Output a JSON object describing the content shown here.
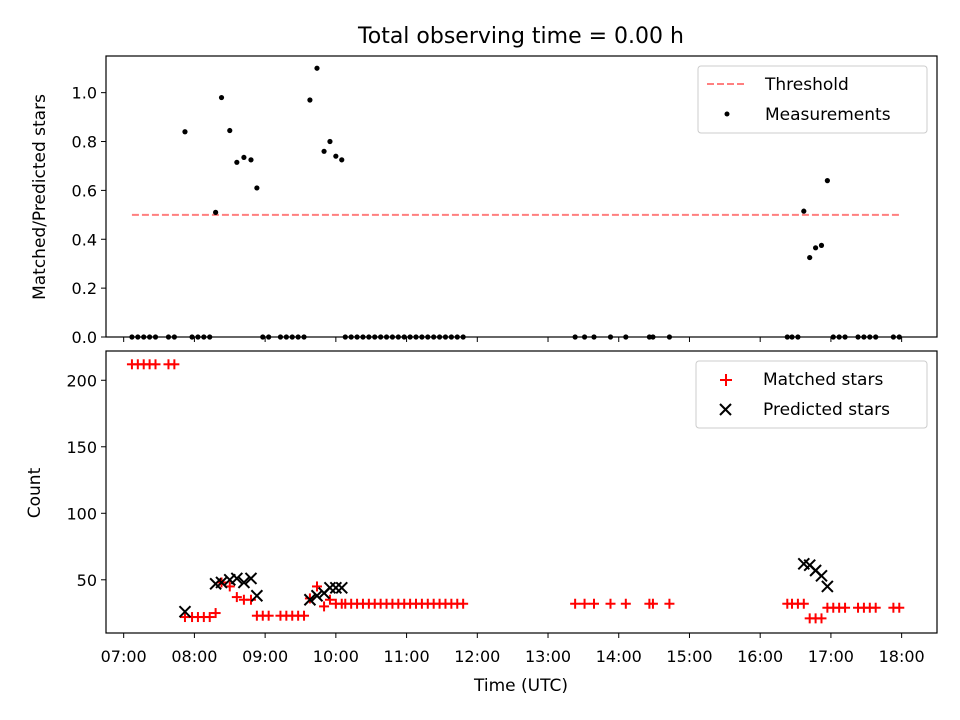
{
  "chart_data": [
    {
      "type": "scatter",
      "title": "Total observing time = 0.00 h",
      "ylabel": "Matched/Predicted stars",
      "xlabel": "",
      "xlim": [
        "06:45",
        "18:30"
      ],
      "ylim": [
        0,
        1.15
      ],
      "yticks": [
        "0.0",
        "0.2",
        "0.4",
        "0.6",
        "0.8",
        "1.0"
      ],
      "grid": false,
      "legend": "top-right",
      "threshold": {
        "name": "Threshold",
        "value": 0.5,
        "x_start": "07:07",
        "x_end": "17:58",
        "color": "#ff7f7f",
        "style": "dashed"
      },
      "series": [
        {
          "name": "Measurements",
          "color": "#000000",
          "marker": "dot",
          "points": [
            [
              "07:07",
              0
            ],
            [
              "07:12",
              0
            ],
            [
              "07:17",
              0
            ],
            [
              "07:22",
              0
            ],
            [
              "07:27",
              0
            ],
            [
              "07:38",
              0
            ],
            [
              "07:43",
              0
            ],
            [
              "07:52",
              0.84
            ],
            [
              "07:58",
              0
            ],
            [
              "08:03",
              0
            ],
            [
              "08:08",
              0
            ],
            [
              "08:13",
              0
            ],
            [
              "08:18",
              0.51
            ],
            [
              "08:23",
              0.98
            ],
            [
              "08:30",
              0.845
            ],
            [
              "08:36",
              0.715
            ],
            [
              "08:42",
              0.735
            ],
            [
              "08:48",
              0.725
            ],
            [
              "08:53",
              0.61
            ],
            [
              "08:58",
              0
            ],
            [
              "09:03",
              0
            ],
            [
              "09:13",
              0
            ],
            [
              "09:18",
              0
            ],
            [
              "09:23",
              0
            ],
            [
              "09:28",
              0
            ],
            [
              "09:33",
              0
            ],
            [
              "09:38",
              0.97
            ],
            [
              "09:44",
              1.1
            ],
            [
              "09:50",
              0.76
            ],
            [
              "09:55",
              0.8
            ],
            [
              "10:00",
              0.74
            ],
            [
              "10:05",
              0.725
            ],
            [
              "10:08",
              0
            ],
            [
              "10:13",
              0
            ],
            [
              "10:18",
              0
            ],
            [
              "10:23",
              0
            ],
            [
              "10:28",
              0
            ],
            [
              "10:33",
              0
            ],
            [
              "10:38",
              0
            ],
            [
              "10:43",
              0
            ],
            [
              "10:48",
              0
            ],
            [
              "10:53",
              0
            ],
            [
              "10:58",
              0
            ],
            [
              "11:03",
              0
            ],
            [
              "11:08",
              0
            ],
            [
              "11:13",
              0
            ],
            [
              "11:18",
              0
            ],
            [
              "11:23",
              0
            ],
            [
              "11:28",
              0
            ],
            [
              "11:33",
              0
            ],
            [
              "11:38",
              0
            ],
            [
              "11:43",
              0
            ],
            [
              "11:48",
              0
            ],
            [
              "13:23",
              0
            ],
            [
              "13:31",
              0
            ],
            [
              "13:39",
              0
            ],
            [
              "13:53",
              0
            ],
            [
              "14:06",
              0
            ],
            [
              "14:26",
              0
            ],
            [
              "14:29",
              0
            ],
            [
              "14:43",
              0
            ],
            [
              "16:23",
              0
            ],
            [
              "16:27",
              0
            ],
            [
              "16:32",
              0
            ],
            [
              "16:37",
              0.515
            ],
            [
              "16:42",
              0.325
            ],
            [
              "16:47",
              0.365
            ],
            [
              "16:52",
              0.375
            ],
            [
              "16:57",
              0.64
            ],
            [
              "17:02",
              0
            ],
            [
              "17:07",
              0
            ],
            [
              "17:12",
              0
            ],
            [
              "17:23",
              0
            ],
            [
              "17:28",
              0
            ],
            [
              "17:33",
              0
            ],
            [
              "17:38",
              0
            ],
            [
              "17:53",
              0
            ],
            [
              "17:58",
              0
            ]
          ]
        }
      ]
    },
    {
      "type": "scatter",
      "title": "",
      "ylabel": "Count",
      "xlabel": "Time (UTC)",
      "xlim": [
        "06:45",
        "18:30"
      ],
      "ylim": [
        10,
        222
      ],
      "yticks": [
        "50",
        "100",
        "150",
        "200"
      ],
      "xticks": [
        "07:00",
        "08:00",
        "09:00",
        "10:00",
        "11:00",
        "12:00",
        "13:00",
        "14:00",
        "15:00",
        "16:00",
        "17:00",
        "18:00"
      ],
      "grid": false,
      "legend": "top-right",
      "series": [
        {
          "name": "Matched stars",
          "color": "#ff0000",
          "marker": "plus",
          "points": [
            [
              "07:07",
              212
            ],
            [
              "07:12",
              212
            ],
            [
              "07:17",
              212
            ],
            [
              "07:22",
              212
            ],
            [
              "07:27",
              212
            ],
            [
              "07:38",
              212
            ],
            [
              "07:43",
              212
            ],
            [
              "07:52",
              22
            ],
            [
              "07:58",
              22
            ],
            [
              "08:03",
              22
            ],
            [
              "08:08",
              22
            ],
            [
              "08:13",
              22
            ],
            [
              "08:18",
              25
            ],
            [
              "08:23",
              48
            ],
            [
              "08:30",
              45
            ],
            [
              "08:36",
              37
            ],
            [
              "08:42",
              35
            ],
            [
              "08:48",
              35
            ],
            [
              "08:53",
              23
            ],
            [
              "08:58",
              23
            ],
            [
              "09:03",
              23
            ],
            [
              "09:13",
              23
            ],
            [
              "09:18",
              23
            ],
            [
              "09:23",
              23
            ],
            [
              "09:28",
              23
            ],
            [
              "09:33",
              23
            ],
            [
              "09:38",
              36
            ],
            [
              "09:44",
              45
            ],
            [
              "09:50",
              30
            ],
            [
              "09:55",
              35
            ],
            [
              "10:00",
              32
            ],
            [
              "10:05",
              32
            ],
            [
              "10:08",
              32
            ],
            [
              "10:13",
              32
            ],
            [
              "10:18",
              32
            ],
            [
              "10:23",
              32
            ],
            [
              "10:28",
              32
            ],
            [
              "10:33",
              32
            ],
            [
              "10:38",
              32
            ],
            [
              "10:43",
              32
            ],
            [
              "10:48",
              32
            ],
            [
              "10:53",
              32
            ],
            [
              "10:58",
              32
            ],
            [
              "11:03",
              32
            ],
            [
              "11:08",
              32
            ],
            [
              "11:13",
              32
            ],
            [
              "11:18",
              32
            ],
            [
              "11:23",
              32
            ],
            [
              "11:28",
              32
            ],
            [
              "11:33",
              32
            ],
            [
              "11:38",
              32
            ],
            [
              "11:43",
              32
            ],
            [
              "11:48",
              32
            ],
            [
              "13:23",
              32
            ],
            [
              "13:31",
              32
            ],
            [
              "13:39",
              32
            ],
            [
              "13:53",
              32
            ],
            [
              "14:06",
              32
            ],
            [
              "14:26",
              32
            ],
            [
              "14:29",
              32
            ],
            [
              "14:43",
              32
            ],
            [
              "16:23",
              32
            ],
            [
              "16:27",
              32
            ],
            [
              "16:32",
              32
            ],
            [
              "16:37",
              32
            ],
            [
              "16:42",
              21
            ],
            [
              "16:47",
              21
            ],
            [
              "16:52",
              21
            ],
            [
              "16:57",
              29
            ],
            [
              "17:02",
              29
            ],
            [
              "17:07",
              29
            ],
            [
              "17:12",
              29
            ],
            [
              "17:23",
              29
            ],
            [
              "17:28",
              29
            ],
            [
              "17:33",
              29
            ],
            [
              "17:38",
              29
            ],
            [
              "17:53",
              29
            ],
            [
              "17:58",
              29
            ]
          ]
        },
        {
          "name": "Predicted stars",
          "color": "#000000",
          "marker": "x",
          "points": [
            [
              "07:52",
              26
            ],
            [
              "08:18",
              47
            ],
            [
              "08:23",
              48
            ],
            [
              "08:30",
              50
            ],
            [
              "08:36",
              51
            ],
            [
              "08:42",
              48
            ],
            [
              "08:48",
              51
            ],
            [
              "08:53",
              38
            ],
            [
              "09:38",
              35
            ],
            [
              "09:44",
              38
            ],
            [
              "09:50",
              40
            ],
            [
              "09:55",
              44
            ],
            [
              "10:00",
              44
            ],
            [
              "10:05",
              44
            ],
            [
              "16:37",
              62
            ],
            [
              "16:42",
              61
            ],
            [
              "16:47",
              57
            ],
            [
              "16:52",
              53
            ],
            [
              "16:57",
              45
            ]
          ]
        }
      ]
    }
  ]
}
